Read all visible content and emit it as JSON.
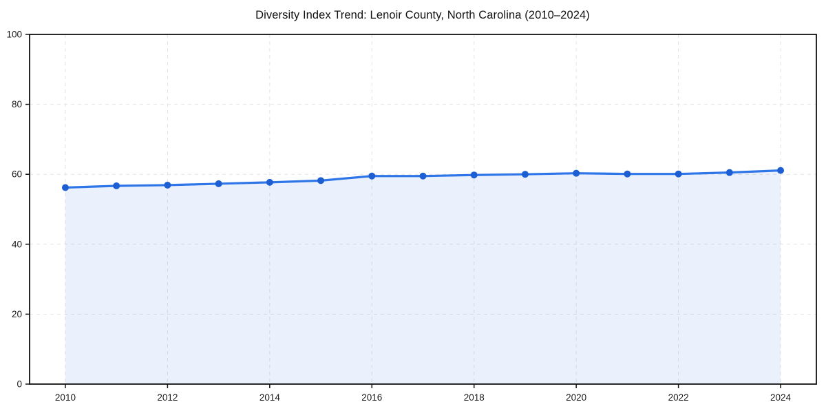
{
  "chart_data": {
    "type": "area",
    "title": "Diversity Index Trend: Lenoir County, North Carolina (2010–2024)",
    "series_name": "Diversity Index",
    "x": [
      2010,
      2011,
      2012,
      2013,
      2014,
      2015,
      2016,
      2017,
      2018,
      2019,
      2020,
      2021,
      2022,
      2023,
      2024
    ],
    "values": [
      56.2,
      56.7,
      56.9,
      57.3,
      57.7,
      58.2,
      59.5,
      59.5,
      59.8,
      60.0,
      60.3,
      60.1,
      60.1,
      60.5,
      61.1
    ],
    "xlabel": "",
    "ylabel": "",
    "xlim": [
      2009.3,
      2024.7
    ],
    "ylim": [
      0,
      100
    ],
    "xticks": [
      2010,
      2012,
      2014,
      2016,
      2018,
      2020,
      2022,
      2024
    ],
    "xtick_labels": [
      "2010",
      "2012",
      "2014",
      "2016",
      "2018",
      "2020",
      "2022",
      "2024"
    ],
    "yticks": [
      0,
      20,
      40,
      60,
      80,
      100
    ],
    "ytick_labels": [
      "0",
      "20",
      "40",
      "60",
      "80",
      "100"
    ],
    "grid": true,
    "grid_style": "dashed",
    "legend": "none",
    "marker": "circle",
    "colors": {
      "line": "#2e75e8",
      "marker": "#1d5fd2",
      "fill": "#2e75e8",
      "fill_opacity": 0.1,
      "grid": "#e4e4e4",
      "spine": "#111111",
      "tick_text": "#1a1a1a",
      "background": "#ffffff"
    }
  }
}
